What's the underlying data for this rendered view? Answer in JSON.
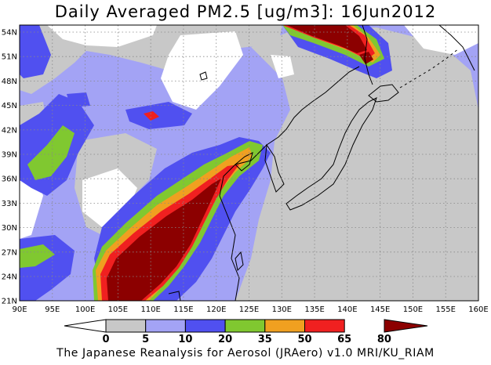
{
  "title": "Daily Averaged PM2.5 [ug/m3]: 16Jun2012",
  "credit": "The Japanese Reanalysis for Aerosol (JRAero) v1.0 MRI/KU_RIAM",
  "map": {
    "lon_labels": [
      "90E",
      "95E",
      "100E",
      "105E",
      "110E",
      "115E",
      "120E",
      "125E",
      "130E",
      "135E",
      "140E",
      "145E",
      "150E",
      "155E",
      "160E"
    ],
    "lat_labels": [
      "54N",
      "51N",
      "48N",
      "45N",
      "42N",
      "39N",
      "36N",
      "33N",
      "30N",
      "27N",
      "24N",
      "21N"
    ]
  },
  "colorbar": {
    "levels": [
      "0",
      "5",
      "10",
      "20",
      "35",
      "50",
      "65",
      "80"
    ],
    "colors": [
      "#ffffff",
      "#c8c8c8",
      "#a3a3f5",
      "#5050f0",
      "#80c830",
      "#f0a020",
      "#f02020",
      "#8c0000"
    ]
  },
  "colors": {
    "white": "#ffffff",
    "c0_5": "#ffffff",
    "c5_10": "#c8c8c8",
    "c10_20": "#a3a3f5",
    "c20_35": "#5050f0",
    "c35_50": "#80c830",
    "c50_65": "#f0a020",
    "c65_80": "#f02020",
    "c80plus": "#8c0000"
  }
}
